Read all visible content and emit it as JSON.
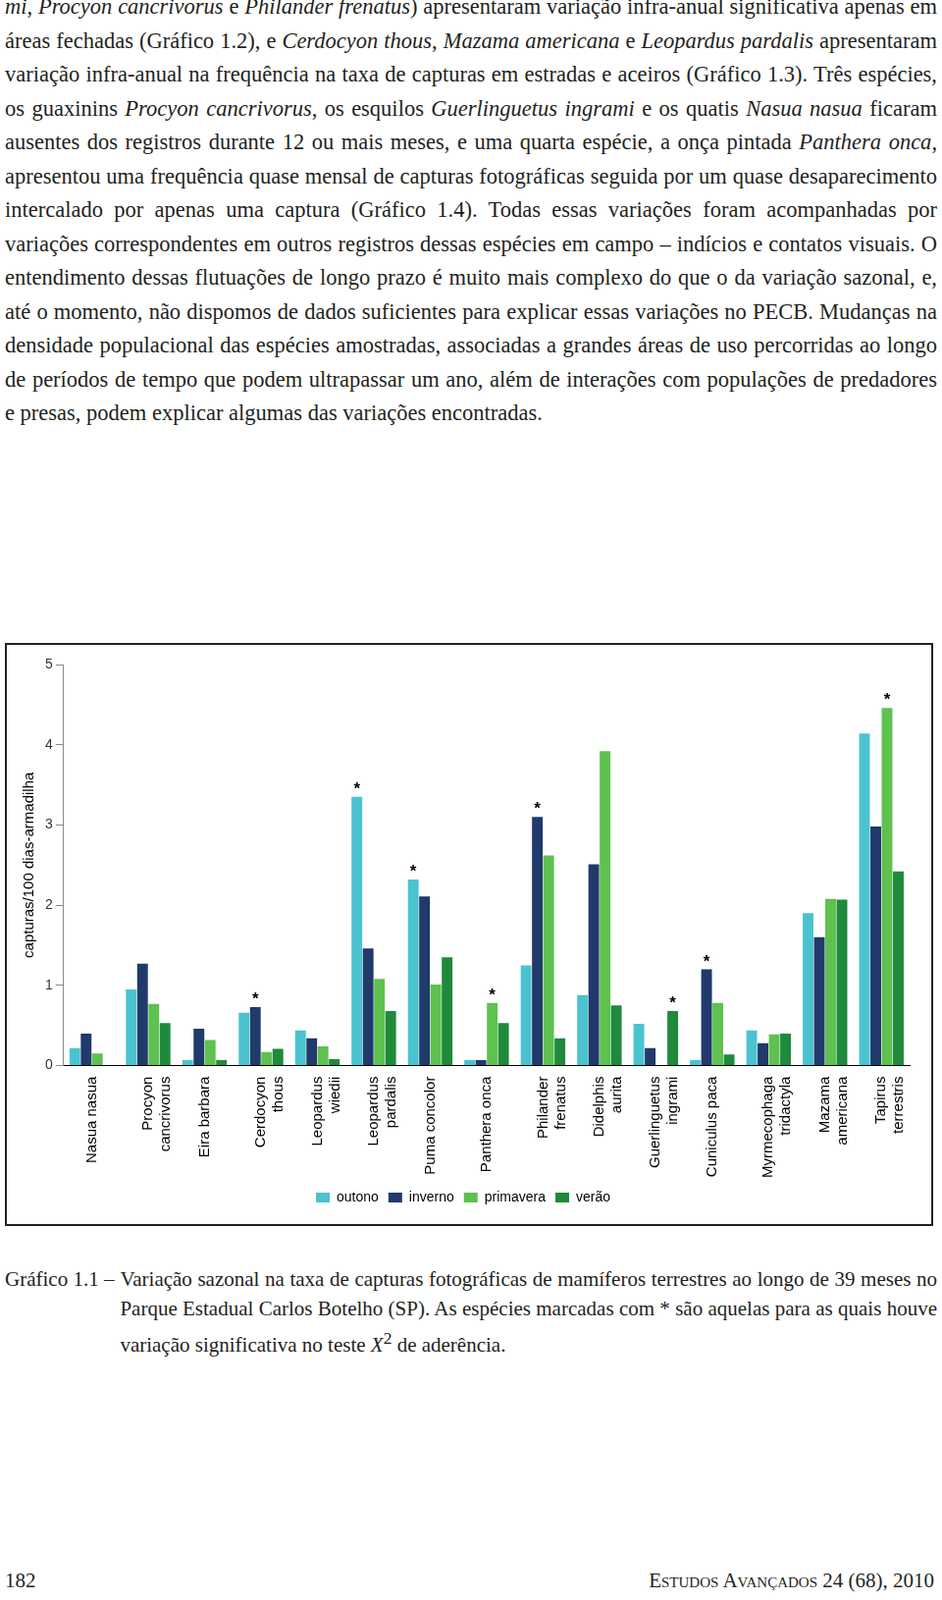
{
  "page": {
    "paragraph": [
      {
        "text": "mi",
        "italic": true
      },
      {
        "text": ", "
      },
      {
        "text": "Procyon cancrivorus",
        "italic": true
      },
      {
        "text": " e "
      },
      {
        "text": "Philander frenatus",
        "italic": true
      },
      {
        "text": ") apresentaram variação infra-anual significativa apenas em áreas fechadas (Gráfico 1.2), e "
      },
      {
        "text": "Cerdocyon thous",
        "italic": true
      },
      {
        "text": ", "
      },
      {
        "text": "Mazama americana",
        "italic": true
      },
      {
        "text": " e "
      },
      {
        "text": "Leopardus pardalis",
        "italic": true
      },
      {
        "text": " apresentaram variação infra-anual na frequência na taxa de capturas em estradas e aceiros (Gráfico 1.3). Três espécies, os guaxinins "
      },
      {
        "text": "Procyon cancrivorus",
        "italic": true
      },
      {
        "text": ", os esquilos "
      },
      {
        "text": "Guerlinguetus ingrami",
        "italic": true
      },
      {
        "text": " e os quatis "
      },
      {
        "text": "Nasua nasua",
        "italic": true
      },
      {
        "text": " ficaram ausentes dos registros durante 12 ou mais meses, e uma quarta espécie, a onça pintada "
      },
      {
        "text": "Panthera onca",
        "italic": true
      },
      {
        "text": ", apresentou uma frequência quase mensal de capturas fotográficas seguida por um quase desaparecimento intercalado por apenas uma captura (Gráfico 1.4). Todas essas variações foram acompanhadas por variações correspondentes em outros registros dessas espécies em campo – indícios e contatos visuais. O entendimento dessas flutuações de longo prazo é muito mais complexo do que o da variação sazonal, e, até o momento, não dispomos de dados suficientes para explicar essas variações no PECB. Mudanças na densidade populacional das espécies amostradas, associadas a grandes áreas de uso percorridas ao longo de períodos de tempo que podem ultrapassar um ano, além de interações com populações de predadores e presas, podem explicar algumas das variações encontradas."
      }
    ],
    "caption": {
      "label": "Gráfico 1.1 –",
      "text": [
        {
          "text": "Variação sazonal na taxa de capturas fotográficas de mamíferos terrestres ao longo de 39 meses no Parque Estadual Carlos Botelho (SP). As espécies marcadas com * são aquelas para as quais houve variação significativa no teste "
        },
        {
          "text": "X",
          "italic": true
        },
        {
          "text": "2",
          "sup": true
        },
        {
          "text": " de aderência."
        }
      ]
    },
    "footer": {
      "page_number": "182",
      "journal": "Estudos Avançados 24 (68), 2010"
    }
  },
  "chart_data": {
    "type": "bar",
    "y_label": "capturas/100 dias-armadilha",
    "categories": [
      "Nasua nasua",
      "Procyon\ncancrivorus",
      "Eira barbara",
      "Cerdocyon\nthous",
      "Leopardus\nwiedii",
      "Leopardus\npardalis",
      "Puma concolor",
      "Panthera onca",
      "Philander\nfrenatus",
      "Didelphis\naurita",
      "Guerlinguetus\ningrami",
      "Cuniculus paca",
      "Myrmecophaga\ntridactyla",
      "Mazama\namericana",
      "Tapirus\nterrestris"
    ],
    "series": [
      {
        "name": "outono",
        "color": "#4bc3cf",
        "values": [
          0.22,
          0.95,
          0.07,
          0.66,
          0.44,
          3.35,
          2.32,
          0.07,
          1.25,
          0.88,
          0.52,
          0.07,
          0.44,
          1.9,
          4.14
        ]
      },
      {
        "name": "inverno",
        "color": "#1f3a6b",
        "values": [
          0.4,
          1.27,
          0.46,
          0.73,
          0.34,
          1.46,
          2.11,
          0.07,
          3.1,
          2.51,
          0.22,
          1.2,
          0.28,
          1.6,
          2.98
        ]
      },
      {
        "name": "primavera",
        "color": "#5ec150",
        "values": [
          0.15,
          0.77,
          0.32,
          0.17,
          0.24,
          1.08,
          1.01,
          0.78,
          2.62,
          3.92,
          0,
          0.78,
          0.39,
          2.08,
          4.46
        ]
      },
      {
        "name": "verão",
        "color": "#1f8a3c",
        "values": [
          0,
          0.53,
          0.07,
          0.21,
          0.08,
          0.68,
          1.35,
          0.53,
          0.34,
          0.75,
          0.68,
          0.14,
          0.4,
          2.07,
          2.42
        ]
      }
    ],
    "annotations": [
      {
        "category": "Cerdocyon\nthous",
        "text": "*"
      },
      {
        "category": "Leopardus\npardalis",
        "text": "*"
      },
      {
        "category": "Puma concolor",
        "text": "*"
      },
      {
        "category": "Panthera onca",
        "text": "*"
      },
      {
        "category": "Philander\nfrenatus",
        "text": "*"
      },
      {
        "category": "Guerlinguetus\ningrami",
        "text": "*"
      },
      {
        "category": "Cuniculus paca",
        "text": "*"
      },
      {
        "category": "Tapirus\nterrestris",
        "text": "*"
      }
    ],
    "ylim": [
      0,
      5
    ],
    "yticks": [
      0,
      1,
      2,
      3,
      4,
      5
    ],
    "grid": false,
    "legend": "bottom"
  }
}
